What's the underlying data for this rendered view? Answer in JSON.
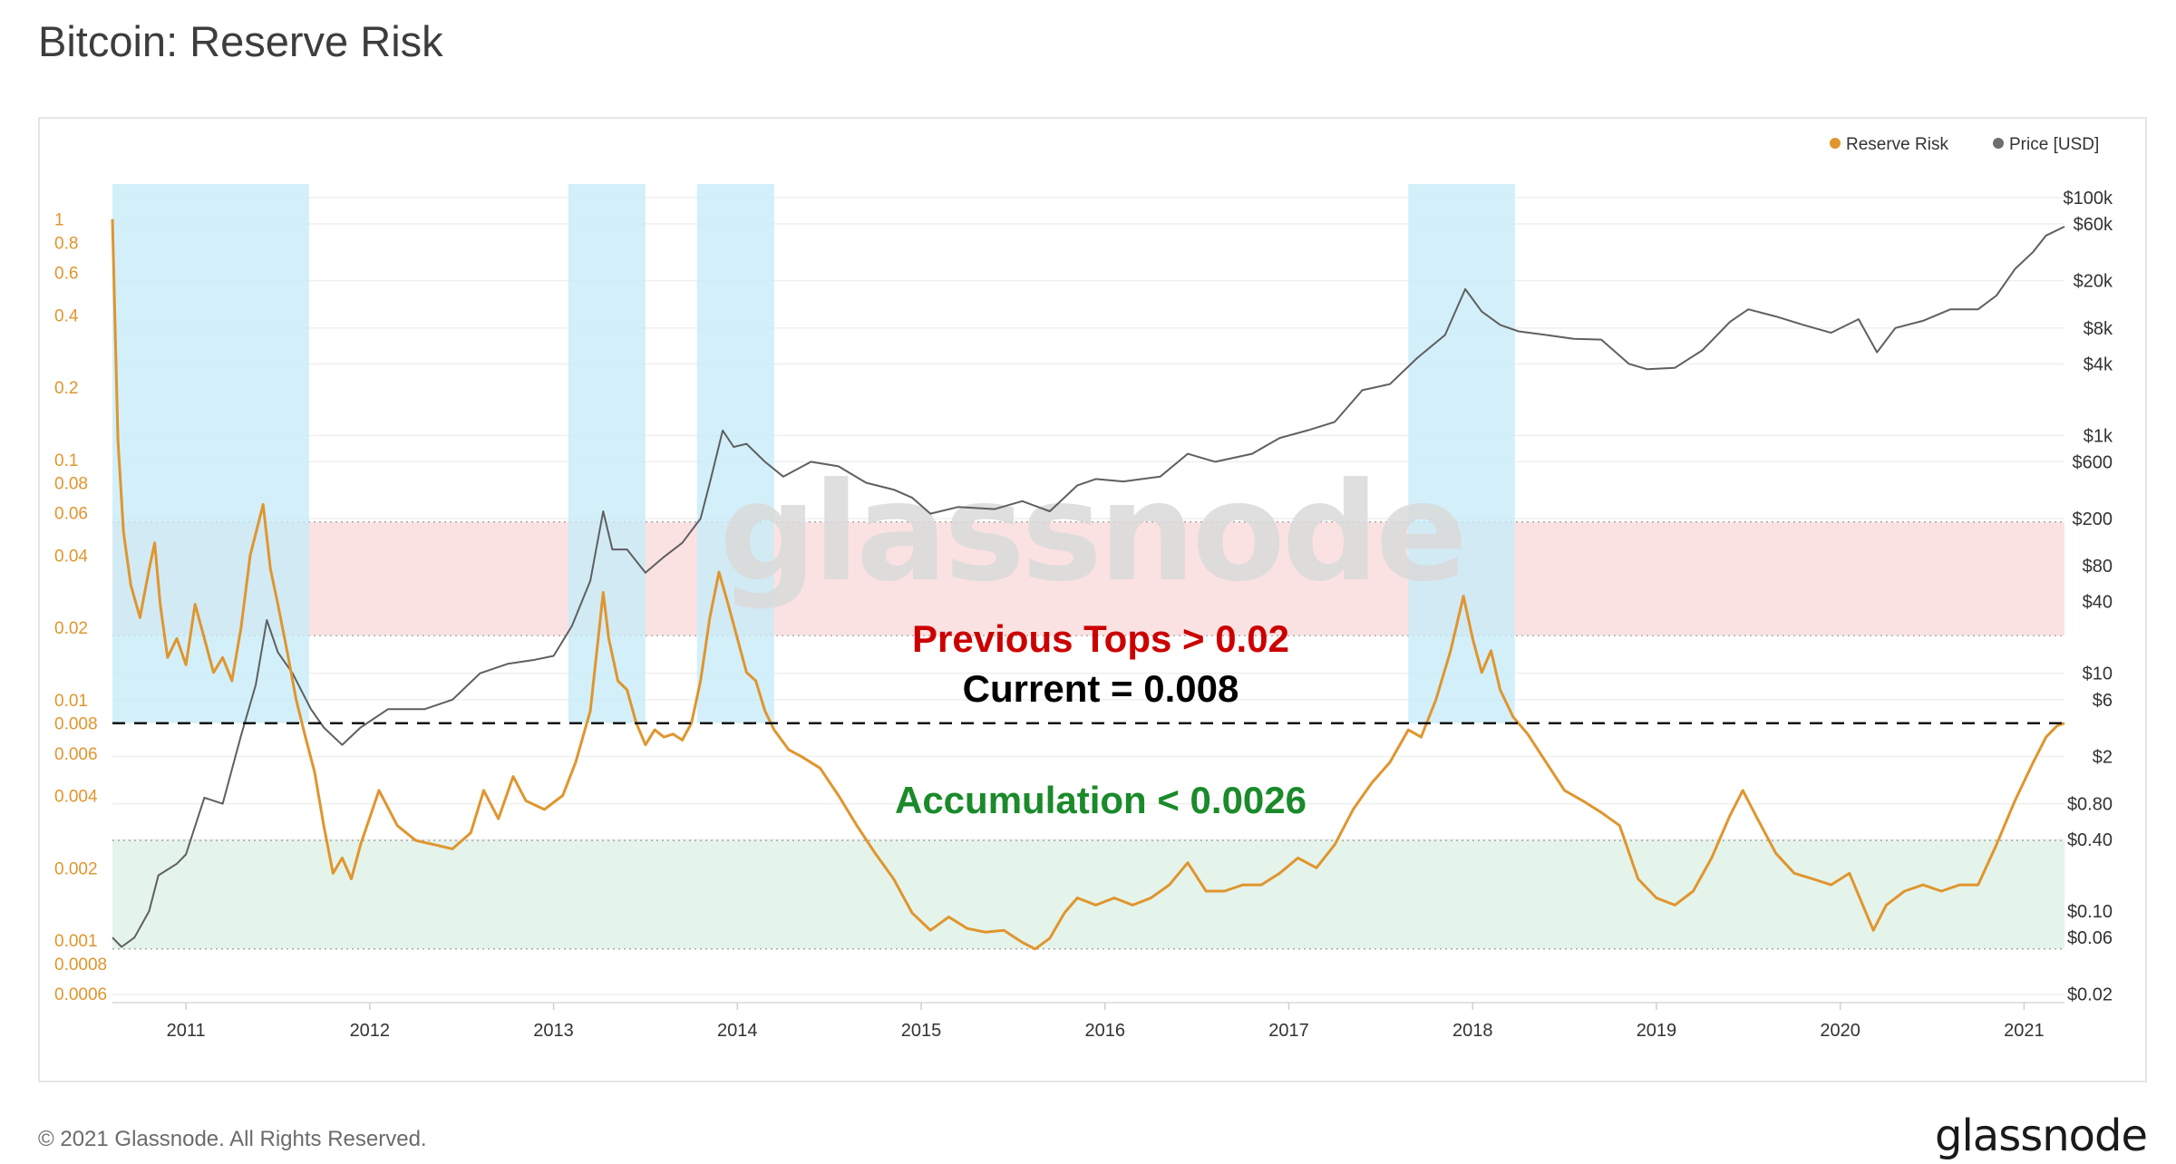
{
  "page": {
    "title": "Bitcoin: Reserve Risk",
    "copyright": "© 2021 Glassnode. All Rights Reserved.",
    "logo": "glassnode",
    "watermark": "glassnode"
  },
  "chart_data": {
    "type": "line",
    "title": "Bitcoin: Reserve Risk",
    "legend": [
      {
        "name": "Reserve Risk",
        "color": "#e0952e"
      },
      {
        "name": "Price [USD]",
        "color": "#6e6e6e"
      }
    ],
    "legend_position": "top-right",
    "x_ticks": [
      "2011",
      "2012",
      "2013",
      "2014",
      "2015",
      "2016",
      "2017",
      "2018",
      "2019",
      "2020",
      "2021"
    ],
    "x_range": [
      2010.6,
      2021.22
    ],
    "y_left": {
      "scale": "log",
      "range": [
        0.00055,
        1.4
      ],
      "ticks": [
        {
          "v": 1,
          "label": "1"
        },
        {
          "v": 0.8,
          "label": "0.8"
        },
        {
          "v": 0.6,
          "label": "0.6"
        },
        {
          "v": 0.4,
          "label": "0.4"
        },
        {
          "v": 0.2,
          "label": "0.2"
        },
        {
          "v": 0.1,
          "label": "0.1"
        },
        {
          "v": 0.08,
          "label": "0.08"
        },
        {
          "v": 0.06,
          "label": "0.06"
        },
        {
          "v": 0.04,
          "label": "0.04"
        },
        {
          "v": 0.02,
          "label": "0.02"
        },
        {
          "v": 0.01,
          "label": "0.01"
        },
        {
          "v": 0.008,
          "label": "0.008"
        },
        {
          "v": 0.006,
          "label": "0.006"
        },
        {
          "v": 0.004,
          "label": "0.004"
        },
        {
          "v": 0.002,
          "label": "0.002"
        },
        {
          "v": 0.001,
          "label": "0.001"
        },
        {
          "v": 0.0008,
          "label": "0.0008"
        },
        {
          "v": 0.0006,
          "label": "0.0006"
        }
      ]
    },
    "y_right": {
      "scale": "log",
      "range": [
        0.017,
        130000
      ],
      "ticks": [
        {
          "v": 100000,
          "label": "$100k"
        },
        {
          "v": 60000,
          "label": "$60k"
        },
        {
          "v": 20000,
          "label": "$20k"
        },
        {
          "v": 8000,
          "label": "$8k"
        },
        {
          "v": 4000,
          "label": "$4k"
        },
        {
          "v": 1000,
          "label": "$1k"
        },
        {
          "v": 600,
          "label": "$600"
        },
        {
          "v": 200,
          "label": "$200"
        },
        {
          "v": 80,
          "label": "$80"
        },
        {
          "v": 40,
          "label": "$40"
        },
        {
          "v": 10,
          "label": "$10"
        },
        {
          "v": 6,
          "label": "$6"
        },
        {
          "v": 2,
          "label": "$2"
        },
        {
          "v": 0.8,
          "label": "$0.80"
        },
        {
          "v": 0.4,
          "label": "$0.40"
        },
        {
          "v": 0.1,
          "label": "$0.10"
        },
        {
          "v": 0.06,
          "label": "$0.06"
        },
        {
          "v": 0.02,
          "label": "$0.02"
        }
      ]
    },
    "bands": [
      {
        "type": "red",
        "from": 0.0185,
        "to": 0.055,
        "axis": "left"
      },
      {
        "type": "green",
        "from": 0.00092,
        "to": 0.0026,
        "axis": "left"
      }
    ],
    "highlight_periods": [
      [
        2010.6,
        2011.67
      ],
      [
        2013.08,
        2013.5
      ],
      [
        2013.78,
        2014.2
      ],
      [
        2017.65,
        2018.23
      ]
    ],
    "current_line": {
      "value": 0.008,
      "axis": "left",
      "style": "dashed"
    },
    "annotations": [
      {
        "text": "Previous Tops > 0.02",
        "color": "#cc0000"
      },
      {
        "text": "Current = 0.008",
        "color": "#000000"
      },
      {
        "text": "Accumulation < 0.0026",
        "color": "#1a8a2a"
      }
    ],
    "series": [
      {
        "name": "Reserve Risk",
        "axis": "left",
        "points": [
          [
            2010.6,
            1.0
          ],
          [
            2010.63,
            0.12
          ],
          [
            2010.66,
            0.05
          ],
          [
            2010.7,
            0.03
          ],
          [
            2010.75,
            0.022
          ],
          [
            2010.8,
            0.035
          ],
          [
            2010.83,
            0.045
          ],
          [
            2010.86,
            0.025
          ],
          [
            2010.9,
            0.015
          ],
          [
            2010.95,
            0.018
          ],
          [
            2011.0,
            0.014
          ],
          [
            2011.05,
            0.025
          ],
          [
            2011.1,
            0.018
          ],
          [
            2011.15,
            0.013
          ],
          [
            2011.2,
            0.015
          ],
          [
            2011.25,
            0.012
          ],
          [
            2011.3,
            0.02
          ],
          [
            2011.35,
            0.04
          ],
          [
            2011.42,
            0.065
          ],
          [
            2011.46,
            0.035
          ],
          [
            2011.5,
            0.025
          ],
          [
            2011.55,
            0.016
          ],
          [
            2011.6,
            0.01
          ],
          [
            2011.65,
            0.007
          ],
          [
            2011.7,
            0.005
          ],
          [
            2011.75,
            0.003
          ],
          [
            2011.8,
            0.0019
          ],
          [
            2011.85,
            0.0022
          ],
          [
            2011.9,
            0.0018
          ],
          [
            2011.95,
            0.0025
          ],
          [
            2012.05,
            0.0042
          ],
          [
            2012.15,
            0.003
          ],
          [
            2012.25,
            0.0026
          ],
          [
            2012.35,
            0.0025
          ],
          [
            2012.45,
            0.0024
          ],
          [
            2012.55,
            0.0028
          ],
          [
            2012.62,
            0.0042
          ],
          [
            2012.7,
            0.0032
          ],
          [
            2012.78,
            0.0048
          ],
          [
            2012.85,
            0.0038
          ],
          [
            2012.95,
            0.0035
          ],
          [
            2013.05,
            0.004
          ],
          [
            2013.12,
            0.0055
          ],
          [
            2013.2,
            0.009
          ],
          [
            2013.27,
            0.028
          ],
          [
            2013.3,
            0.018
          ],
          [
            2013.35,
            0.012
          ],
          [
            2013.4,
            0.011
          ],
          [
            2013.45,
            0.008
          ],
          [
            2013.5,
            0.0065
          ],
          [
            2013.55,
            0.0075
          ],
          [
            2013.6,
            0.007
          ],
          [
            2013.65,
            0.0072
          ],
          [
            2013.7,
            0.0068
          ],
          [
            2013.75,
            0.008
          ],
          [
            2013.8,
            0.012
          ],
          [
            2013.85,
            0.022
          ],
          [
            2013.9,
            0.034
          ],
          [
            2013.95,
            0.025
          ],
          [
            2014.0,
            0.018
          ],
          [
            2014.05,
            0.013
          ],
          [
            2014.1,
            0.012
          ],
          [
            2014.15,
            0.009
          ],
          [
            2014.2,
            0.0075
          ],
          [
            2014.28,
            0.0062
          ],
          [
            2014.35,
            0.0058
          ],
          [
            2014.45,
            0.0052
          ],
          [
            2014.55,
            0.004
          ],
          [
            2014.65,
            0.003
          ],
          [
            2014.75,
            0.0023
          ],
          [
            2014.85,
            0.0018
          ],
          [
            2014.95,
            0.0013
          ],
          [
            2015.05,
            0.0011
          ],
          [
            2015.15,
            0.00125
          ],
          [
            2015.25,
            0.00112
          ],
          [
            2015.35,
            0.00108
          ],
          [
            2015.45,
            0.0011
          ],
          [
            2015.55,
            0.00098
          ],
          [
            2015.62,
            0.00092
          ],
          [
            2015.7,
            0.00102
          ],
          [
            2015.78,
            0.0013
          ],
          [
            2015.85,
            0.0015
          ],
          [
            2015.95,
            0.0014
          ],
          [
            2016.05,
            0.0015
          ],
          [
            2016.15,
            0.0014
          ],
          [
            2016.25,
            0.0015
          ],
          [
            2016.35,
            0.0017
          ],
          [
            2016.45,
            0.0021
          ],
          [
            2016.55,
            0.0016
          ],
          [
            2016.65,
            0.0016
          ],
          [
            2016.75,
            0.0017
          ],
          [
            2016.85,
            0.0017
          ],
          [
            2016.95,
            0.0019
          ],
          [
            2017.05,
            0.0022
          ],
          [
            2017.15,
            0.002
          ],
          [
            2017.25,
            0.0025
          ],
          [
            2017.35,
            0.0035
          ],
          [
            2017.45,
            0.0045
          ],
          [
            2017.55,
            0.0055
          ],
          [
            2017.65,
            0.0075
          ],
          [
            2017.72,
            0.007
          ],
          [
            2017.8,
            0.01
          ],
          [
            2017.88,
            0.016
          ],
          [
            2017.95,
            0.027
          ],
          [
            2018.0,
            0.018
          ],
          [
            2018.05,
            0.013
          ],
          [
            2018.1,
            0.016
          ],
          [
            2018.15,
            0.011
          ],
          [
            2018.22,
            0.0085
          ],
          [
            2018.3,
            0.0072
          ],
          [
            2018.4,
            0.0055
          ],
          [
            2018.5,
            0.0042
          ],
          [
            2018.6,
            0.0038
          ],
          [
            2018.7,
            0.0034
          ],
          [
            2018.8,
            0.003
          ],
          [
            2018.9,
            0.0018
          ],
          [
            2019.0,
            0.0015
          ],
          [
            2019.1,
            0.0014
          ],
          [
            2019.2,
            0.0016
          ],
          [
            2019.3,
            0.0022
          ],
          [
            2019.4,
            0.0033
          ],
          [
            2019.47,
            0.0042
          ],
          [
            2019.55,
            0.0032
          ],
          [
            2019.65,
            0.0023
          ],
          [
            2019.75,
            0.0019
          ],
          [
            2019.85,
            0.0018
          ],
          [
            2019.95,
            0.0017
          ],
          [
            2020.05,
            0.0019
          ],
          [
            2020.18,
            0.0011
          ],
          [
            2020.25,
            0.0014
          ],
          [
            2020.35,
            0.0016
          ],
          [
            2020.45,
            0.0017
          ],
          [
            2020.55,
            0.0016
          ],
          [
            2020.65,
            0.0017
          ],
          [
            2020.75,
            0.0017
          ],
          [
            2020.85,
            0.0025
          ],
          [
            2020.95,
            0.0038
          ],
          [
            2021.05,
            0.0055
          ],
          [
            2021.12,
            0.007
          ],
          [
            2021.18,
            0.0078
          ],
          [
            2021.22,
            0.008
          ]
        ]
      },
      {
        "name": "Price [USD]",
        "axis": "right",
        "points": [
          [
            2010.6,
            0.06
          ],
          [
            2010.65,
            0.05
          ],
          [
            2010.72,
            0.06
          ],
          [
            2010.8,
            0.1
          ],
          [
            2010.85,
            0.2
          ],
          [
            2010.95,
            0.25
          ],
          [
            2011.0,
            0.3
          ],
          [
            2011.1,
            0.9
          ],
          [
            2011.2,
            0.8
          ],
          [
            2011.3,
            3.0
          ],
          [
            2011.38,
            8
          ],
          [
            2011.44,
            28
          ],
          [
            2011.5,
            15
          ],
          [
            2011.58,
            10
          ],
          [
            2011.68,
            5
          ],
          [
            2011.75,
            3.5
          ],
          [
            2011.85,
            2.5
          ],
          [
            2011.95,
            3.5
          ],
          [
            2012.1,
            5
          ],
          [
            2012.3,
            5
          ],
          [
            2012.45,
            6
          ],
          [
            2012.6,
            10
          ],
          [
            2012.75,
            12
          ],
          [
            2012.9,
            13
          ],
          [
            2013.0,
            14
          ],
          [
            2013.1,
            25
          ],
          [
            2013.2,
            60
          ],
          [
            2013.27,
            230
          ],
          [
            2013.32,
            110
          ],
          [
            2013.4,
            110
          ],
          [
            2013.5,
            70
          ],
          [
            2013.6,
            95
          ],
          [
            2013.7,
            125
          ],
          [
            2013.8,
            200
          ],
          [
            2013.85,
            400
          ],
          [
            2013.92,
            1100
          ],
          [
            2013.98,
            800
          ],
          [
            2014.05,
            850
          ],
          [
            2014.15,
            600
          ],
          [
            2014.25,
            450
          ],
          [
            2014.4,
            600
          ],
          [
            2014.55,
            550
          ],
          [
            2014.7,
            400
          ],
          [
            2014.85,
            350
          ],
          [
            2014.95,
            300
          ],
          [
            2015.05,
            220
          ],
          [
            2015.2,
            250
          ],
          [
            2015.4,
            240
          ],
          [
            2015.55,
            280
          ],
          [
            2015.7,
            230
          ],
          [
            2015.85,
            380
          ],
          [
            2015.95,
            430
          ],
          [
            2016.1,
            410
          ],
          [
            2016.3,
            450
          ],
          [
            2016.45,
            700
          ],
          [
            2016.6,
            600
          ],
          [
            2016.8,
            700
          ],
          [
            2016.95,
            950
          ],
          [
            2017.1,
            1100
          ],
          [
            2017.25,
            1300
          ],
          [
            2017.4,
            2400
          ],
          [
            2017.55,
            2700
          ],
          [
            2017.7,
            4500
          ],
          [
            2017.85,
            7000
          ],
          [
            2017.96,
            17000
          ],
          [
            2018.05,
            11000
          ],
          [
            2018.15,
            8500
          ],
          [
            2018.25,
            7500
          ],
          [
            2018.4,
            7000
          ],
          [
            2018.55,
            6500
          ],
          [
            2018.7,
            6400
          ],
          [
            2018.85,
            4000
          ],
          [
            2018.95,
            3600
          ],
          [
            2019.1,
            3700
          ],
          [
            2019.25,
            5200
          ],
          [
            2019.4,
            9000
          ],
          [
            2019.5,
            11500
          ],
          [
            2019.65,
            10000
          ],
          [
            2019.8,
            8500
          ],
          [
            2019.95,
            7300
          ],
          [
            2020.1,
            9500
          ],
          [
            2020.2,
            5000
          ],
          [
            2020.3,
            8000
          ],
          [
            2020.45,
            9200
          ],
          [
            2020.6,
            11500
          ],
          [
            2020.75,
            11500
          ],
          [
            2020.85,
            15000
          ],
          [
            2020.95,
            25000
          ],
          [
            2021.05,
            35000
          ],
          [
            2021.12,
            48000
          ],
          [
            2021.22,
            57000
          ]
        ]
      }
    ]
  }
}
